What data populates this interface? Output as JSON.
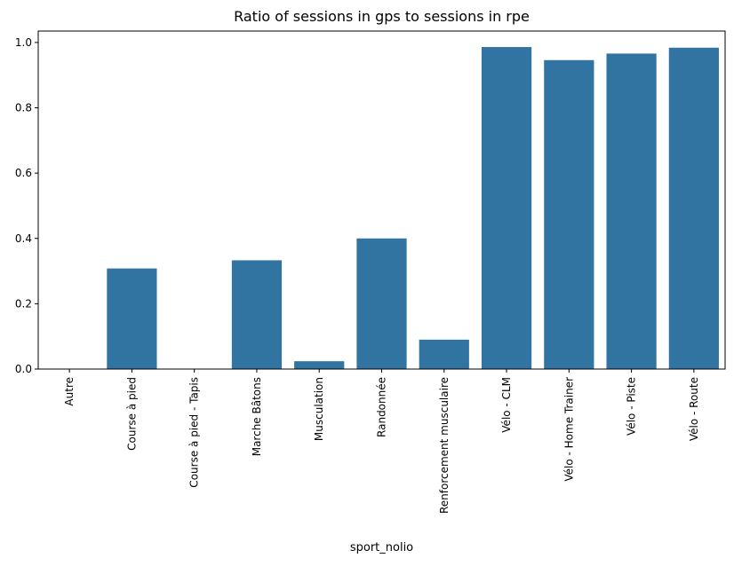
{
  "chart_data": {
    "type": "bar",
    "title": "Ratio of sessions in gps to sessions in rpe",
    "xlabel": "sport_nolio",
    "ylabel": "",
    "ylim": [
      0,
      1.035
    ],
    "yticks": [
      0.0,
      0.2,
      0.4,
      0.6,
      0.8,
      1.0
    ],
    "ytick_labels": [
      "0.0",
      "0.2",
      "0.4",
      "0.6",
      "0.8",
      "1.0"
    ],
    "grid": false,
    "bar_color": "#3274a1",
    "categories": [
      "Autre",
      "Course à pied",
      "Course à pied - Tapis",
      "Marche Bâtons",
      "Musculation",
      "Randonnée",
      "Renforcement musculaire",
      "Vélo - CLM",
      "Vélo - Home Trainer",
      "Vélo - Piste",
      "Vélo - Route"
    ],
    "values": [
      0.0,
      0.308,
      0.0,
      0.333,
      0.024,
      0.4,
      0.09,
      0.986,
      0.946,
      0.966,
      0.984
    ]
  }
}
